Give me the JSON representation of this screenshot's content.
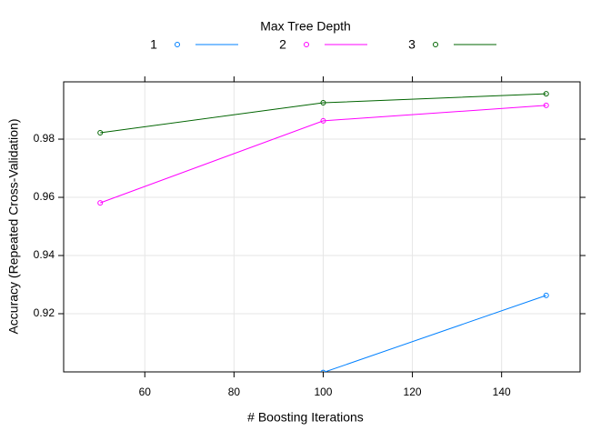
{
  "chart_data": {
    "type": "line",
    "legend_title": "Max Tree Depth",
    "xlabel": "# Boosting Iterations",
    "ylabel": "Accuracy (Repeated Cross-Validation)",
    "x": [
      50,
      100,
      150
    ],
    "series": [
      {
        "name": "1",
        "color": "#0080ff",
        "values": [
          null,
          0.8998,
          0.9263
        ]
      },
      {
        "name": "2",
        "color": "#ff00ff",
        "values": [
          0.9581,
          0.9863,
          0.9916
        ]
      },
      {
        "name": "3",
        "color": "#006400",
        "values": [
          0.9822,
          0.9925,
          0.9956
        ]
      }
    ],
    "xlim": [
      41.8,
      157.6
    ],
    "ylim": [
      0.9,
      0.9997
    ],
    "xticks": [
      60,
      80,
      100,
      120,
      140
    ],
    "yticks": [
      0.92,
      0.94,
      0.96,
      0.98
    ],
    "grid": true,
    "legend_position": "top"
  }
}
